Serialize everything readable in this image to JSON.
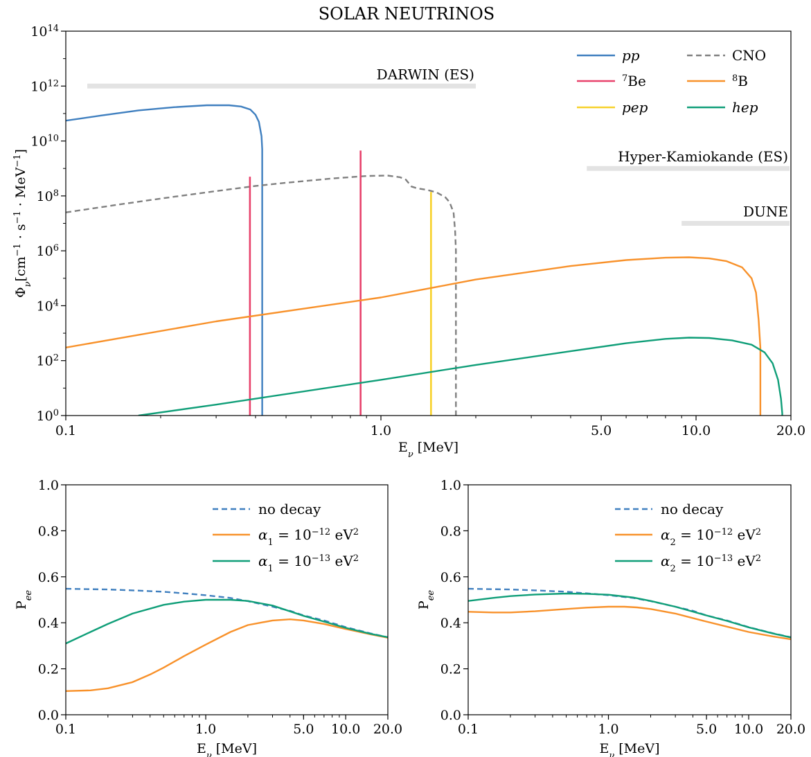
{
  "figure": {
    "title": "SOLAR NEUTRINOS"
  },
  "colors": {
    "pp": "#3f7fbf",
    "be7": "#e8416b",
    "pep": "#f7d12b",
    "cno": "#808080",
    "b8": "#f8912a",
    "hep": "#0f9e78",
    "band": "#e3e3e3",
    "band_text": "#7f7f7f",
    "nodecay": "#3f7fbf"
  },
  "chart_data": [
    {
      "type": "line",
      "panel": "top",
      "title": "SOLAR NEUTRINOS",
      "xlabel": "E_ν [MeV]",
      "ylabel": "Φ_ν[cm⁻¹ · s⁻¹ · MeV⁻¹]",
      "xscale": "log",
      "yscale": "log",
      "xlim": [
        0.1,
        20
      ],
      "ylim": [
        1,
        100000000000000.0
      ],
      "xticks": [
        {
          "value": 0.1,
          "label": "0.1"
        },
        {
          "value": 1,
          "label": "1.0"
        },
        {
          "value": 5,
          "label": "5.0"
        },
        {
          "value": 10,
          "label": "10.0"
        },
        {
          "value": 20,
          "label": "20.0"
        }
      ],
      "yticks": [
        {
          "exp": 0,
          "base": "10",
          "sup": "0"
        },
        {
          "exp": 2,
          "base": "10",
          "sup": "2"
        },
        {
          "exp": 4,
          "base": "10",
          "sup": "4"
        },
        {
          "exp": 6,
          "base": "10",
          "sup": "6"
        },
        {
          "exp": 8,
          "base": "10",
          "sup": "8"
        },
        {
          "exp": 10,
          "base": "10",
          "sup": "10"
        },
        {
          "exp": 12,
          "base": "10",
          "sup": "12"
        },
        {
          "exp": 14,
          "base": "10",
          "sup": "14"
        }
      ],
      "legend": {
        "placement": "top-right",
        "entries": [
          {
            "key": "pp",
            "pre": "",
            "label": "pp",
            "dashed": false
          },
          {
            "key": "cno",
            "pre": "",
            "label": "CNO",
            "dashed": true
          },
          {
            "key": "be7",
            "pre": "7",
            "label": "Be",
            "dashed": false
          },
          {
            "key": "b8",
            "pre": "8",
            "label": "B",
            "dashed": false
          },
          {
            "key": "pep",
            "pre": "",
            "label": "pep",
            "dashed": false
          },
          {
            "key": "hep",
            "pre": "",
            "label": "hep",
            "dashed": false
          }
        ]
      },
      "series": [
        {
          "name": "pp",
          "key": "pp",
          "x": [
            0.1,
            0.13,
            0.17,
            0.22,
            0.28,
            0.33,
            0.36,
            0.385,
            0.4,
            0.41,
            0.418,
            0.42,
            0.42
          ],
          "y": [
            55000000000.0,
            85000000000.0,
            130000000000.0,
            170000000000.0,
            200000000000.0,
            200000000000.0,
            180000000000.0,
            140000000000.0,
            90000000000.0,
            50000000000.0,
            15000000000.0,
            5000000000.0,
            1
          ]
        },
        {
          "name": "CNO",
          "key": "cno",
          "dashed": true,
          "x": [
            0.1,
            0.15,
            0.2,
            0.3,
            0.4,
            0.5,
            0.7,
            0.9,
            1.05,
            1.15,
            1.2,
            1.25,
            1.3,
            1.4,
            1.5,
            1.6,
            1.65,
            1.7,
            1.72,
            1.73,
            1.73
          ],
          "y": [
            25000000.0,
            50000000.0,
            80000000.0,
            150000000.0,
            230000000.0,
            300000000.0,
            430000000.0,
            530000000.0,
            550000000.0,
            480000000.0,
            390000000.0,
            220000000.0,
            190000000.0,
            165000000.0,
            135000000.0,
            90000000.0,
            60000000.0,
            25000000.0,
            5000000.0,
            1000000.0,
            1
          ]
        },
        {
          "name": "7Be",
          "key": "be7",
          "lines": [
            {
              "x": 0.384,
              "y": 500000000.0
            },
            {
              "x": 0.862,
              "y": 4500000000.0
            }
          ]
        },
        {
          "name": "pep",
          "key": "pep",
          "lines": [
            {
              "x": 1.442,
              "y": 140000000.0
            }
          ]
        },
        {
          "name": "8B",
          "key": "b8",
          "x": [
            0.1,
            0.3,
            1,
            2,
            4,
            6,
            8,
            9.5,
            11,
            12.5,
            14,
            15,
            15.5,
            15.8,
            16.0,
            16.0
          ],
          "y": [
            300,
            2700,
            20000.0,
            90000.0,
            280000.0,
            460000.0,
            560000.0,
            580000.0,
            530000.0,
            420000.0,
            250000.0,
            100000.0,
            30000.0,
            3000.0,
            300.0,
            1
          ]
        },
        {
          "name": "hep",
          "key": "hep",
          "x": [
            0.17,
            0.3,
            1,
            2,
            4,
            6,
            8,
            9.5,
            11,
            13,
            15,
            16.5,
            17.5,
            18.2,
            18.6,
            18.77,
            18.77
          ],
          "y": [
            1,
            2.5,
            20,
            70,
            220,
            430,
            620,
            690,
            670,
            550,
            380,
            200,
            80,
            20,
            4,
            1.2,
            1
          ]
        }
      ],
      "bands": [
        {
          "name": "DARWIN (ES)",
          "label": "DARWIN (ES)",
          "xmin": 0.117,
          "xmax": 2.0,
          "y": 1000000000000.0
        },
        {
          "name": "Hyper-Kamiokande (ES)",
          "label": "Hyper-Kamiokande (ES)",
          "xmin": 4.5,
          "xmax": 19.8,
          "y": 1000000000.0
        },
        {
          "name": "DUNE",
          "label": "DUNE",
          "xmin": 9.0,
          "xmax": 19.8,
          "y": 10000000.0
        }
      ]
    },
    {
      "type": "line",
      "panel": "bottom-left",
      "xlabel": "E_ν [MeV]",
      "ylabel": "P_ee",
      "xscale": "log",
      "xlim": [
        0.1,
        20
      ],
      "ylim": [
        0,
        1
      ],
      "xticks": [
        {
          "value": 0.1,
          "label": "0.1"
        },
        {
          "value": 1,
          "label": "1.0"
        },
        {
          "value": 5,
          "label": "5.0"
        },
        {
          "value": 10,
          "label": "10.0"
        },
        {
          "value": 20,
          "label": "20.0"
        }
      ],
      "yticks": [
        "0.0",
        "0.2",
        "0.4",
        "0.6",
        "0.8",
        "1.0"
      ],
      "legend": {
        "placement": "top-right",
        "entries": [
          {
            "key": "nodecay",
            "label": "no decay",
            "dashed": true
          },
          {
            "key": "b8",
            "label": "α₁ = 10⁻¹² eV²",
            "sym": "α",
            "sub": "1",
            "exp": "−12",
            "unit": "eV",
            "unitsup": "2",
            "dashed": false
          },
          {
            "key": "hep",
            "label": "α₁ = 10⁻¹³ eV²",
            "sym": "α",
            "sub": "1",
            "exp": "−13",
            "unit": "eV",
            "unitsup": "2",
            "dashed": false
          }
        ]
      },
      "series": [
        {
          "name": "no decay",
          "key": "nodecay",
          "dashed": true,
          "x": [
            0.1,
            0.2,
            0.3,
            0.5,
            0.7,
            1,
            1.5,
            2,
            3,
            4,
            5,
            7,
            10,
            15,
            20
          ],
          "y": [
            0.548,
            0.545,
            0.541,
            0.535,
            0.528,
            0.52,
            0.508,
            0.494,
            0.47,
            0.452,
            0.432,
            0.41,
            0.381,
            0.354,
            0.337
          ]
        },
        {
          "name": "α₁ = 10⁻¹² eV²",
          "key": "b8",
          "x": [
            0.1,
            0.15,
            0.2,
            0.3,
            0.4,
            0.5,
            0.7,
            1.0,
            1.5,
            2,
            3,
            4,
            5,
            7,
            10,
            15,
            20
          ],
          "y": [
            0.103,
            0.106,
            0.115,
            0.142,
            0.175,
            0.205,
            0.255,
            0.305,
            0.36,
            0.39,
            0.41,
            0.415,
            0.41,
            0.395,
            0.373,
            0.35,
            0.335
          ]
        },
        {
          "name": "α₁ = 10⁻¹³ eV²",
          "key": "hep",
          "x": [
            0.1,
            0.15,
            0.2,
            0.3,
            0.5,
            0.7,
            1.0,
            1.5,
            2,
            3,
            5,
            7,
            10,
            15,
            20
          ],
          "y": [
            0.31,
            0.36,
            0.395,
            0.44,
            0.478,
            0.492,
            0.5,
            0.5,
            0.495,
            0.475,
            0.43,
            0.405,
            0.378,
            0.352,
            0.337
          ]
        }
      ]
    },
    {
      "type": "line",
      "panel": "bottom-right",
      "xlabel": "E_ν [MeV]",
      "ylabel": "P_ee",
      "xscale": "log",
      "xlim": [
        0.1,
        20
      ],
      "ylim": [
        0,
        1
      ],
      "xticks": [
        {
          "value": 0.1,
          "label": "0.1"
        },
        {
          "value": 1,
          "label": "1.0"
        },
        {
          "value": 5,
          "label": "5.0"
        },
        {
          "value": 10,
          "label": "10.0"
        },
        {
          "value": 20,
          "label": "20.0"
        }
      ],
      "yticks": [
        "0.0",
        "0.2",
        "0.4",
        "0.6",
        "0.8",
        "1.0"
      ],
      "legend": {
        "placement": "top-right",
        "entries": [
          {
            "key": "nodecay",
            "label": "no decay",
            "dashed": true
          },
          {
            "key": "b8",
            "label": "α₂ = 10⁻¹² eV²",
            "sym": "α",
            "sub": "2",
            "exp": "−12",
            "unit": "eV",
            "unitsup": "2",
            "dashed": false
          },
          {
            "key": "hep",
            "label": "α₂ = 10⁻¹³ eV²",
            "sym": "α",
            "sub": "2",
            "exp": "−13",
            "unit": "eV",
            "unitsup": "2",
            "dashed": false
          }
        ]
      },
      "series": [
        {
          "name": "no decay",
          "key": "nodecay",
          "dashed": true,
          "x": [
            0.1,
            0.2,
            0.3,
            0.5,
            0.7,
            1,
            1.5,
            2,
            3,
            4,
            5,
            7,
            10,
            15,
            20
          ],
          "y": [
            0.548,
            0.545,
            0.541,
            0.535,
            0.528,
            0.52,
            0.508,
            0.494,
            0.47,
            0.452,
            0.432,
            0.41,
            0.381,
            0.354,
            0.337
          ]
        },
        {
          "name": "α₂ = 10⁻¹² eV²",
          "key": "b8",
          "x": [
            0.1,
            0.15,
            0.2,
            0.3,
            0.5,
            0.7,
            1.0,
            1.3,
            1.6,
            2,
            3,
            5,
            7,
            10,
            15,
            20
          ],
          "y": [
            0.448,
            0.445,
            0.445,
            0.45,
            0.46,
            0.466,
            0.47,
            0.47,
            0.467,
            0.46,
            0.44,
            0.405,
            0.383,
            0.36,
            0.34,
            0.328
          ]
        },
        {
          "name": "α₂ = 10⁻¹³ eV²",
          "key": "hep",
          "x": [
            0.1,
            0.15,
            0.2,
            0.3,
            0.5,
            0.7,
            1.0,
            1.5,
            2,
            3,
            5,
            7,
            10,
            15,
            20
          ],
          "y": [
            0.495,
            0.508,
            0.516,
            0.523,
            0.527,
            0.526,
            0.522,
            0.51,
            0.495,
            0.47,
            0.432,
            0.408,
            0.38,
            0.353,
            0.336
          ]
        }
      ]
    }
  ]
}
